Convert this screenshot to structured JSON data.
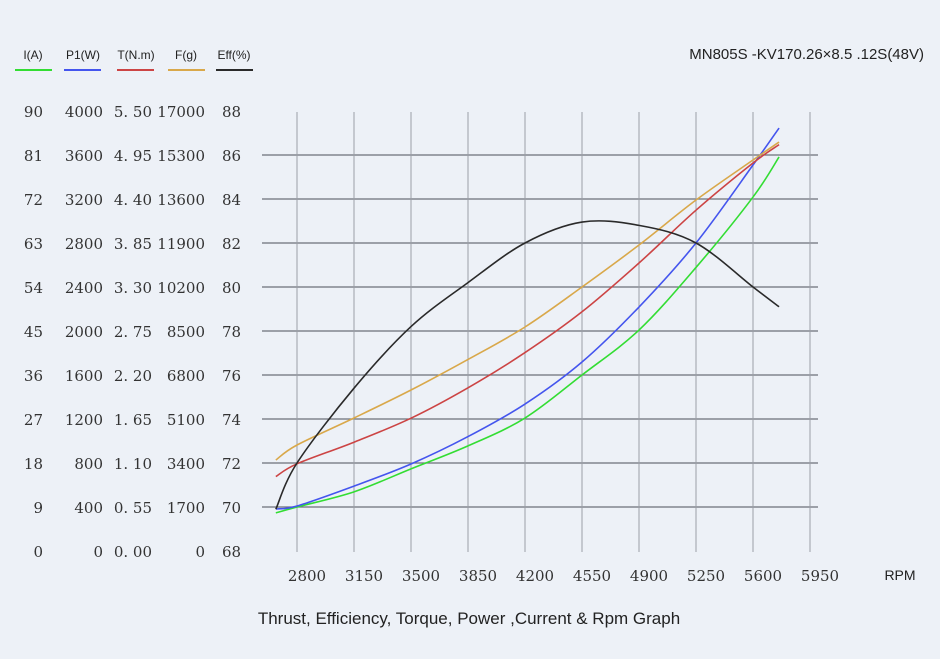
{
  "chart_data": {
    "type": "line",
    "title": "MN805S -KV170.26×8.5 .12S(48V)",
    "caption": "Thrust, Efficiency, Torque, Power ,Current & Rpm Graph",
    "xlabel": "RPM",
    "x_ticks": [
      "2800",
      "3150",
      "3500",
      "3850",
      "4200",
      "4550",
      "4900",
      "5250",
      "5600",
      "5950"
    ],
    "xlim": [
      2800,
      5950
    ],
    "grid": true,
    "legend_position": "top-left",
    "axes": [
      {
        "key": "I",
        "label": "I(A)",
        "ylim": [
          0,
          90
        ],
        "ticks": [
          "90",
          "81",
          "72",
          "63",
          "54",
          "45",
          "36",
          "27",
          "18",
          "9",
          "0"
        ]
      },
      {
        "key": "P1",
        "label": "P1(W)",
        "ylim": [
          0,
          4000
        ],
        "ticks": [
          "4000",
          "3600",
          "3200",
          "2800",
          "2400",
          "2000",
          "1600",
          "1200",
          "800",
          "400",
          "0"
        ]
      },
      {
        "key": "T",
        "label": "T(N.m)",
        "ylim": [
          0,
          5.5
        ],
        "ticks": [
          "5. 50",
          "4. 95",
          "4. 40",
          "3. 85",
          "3. 30",
          "2. 75",
          "2. 20",
          "1. 65",
          "1. 10",
          "0. 55",
          "0. 00"
        ]
      },
      {
        "key": "F",
        "label": "F(g)",
        "ylim": [
          0,
          17000
        ],
        "ticks": [
          "17000",
          "15300",
          "13600",
          "11900",
          "10200",
          "8500",
          "6800",
          "5100",
          "3400",
          "1700",
          "0"
        ]
      },
      {
        "key": "Eff",
        "label": "Eff(%)",
        "ylim": [
          68,
          88
        ],
        "ticks": [
          "88",
          "86",
          "84",
          "82",
          "80",
          "78",
          "76",
          "74",
          "72",
          "70",
          "68"
        ]
      }
    ],
    "x": [
      2670,
      2800,
      3150,
      3500,
      3850,
      4200,
      4550,
      4900,
      5250,
      5600,
      5760
    ],
    "series": [
      {
        "name": "I(A)",
        "axis": "I",
        "color": "#33dd33",
        "values": [
          7.8,
          9.0,
          12.1,
          16.8,
          21.5,
          27.2,
          36.0,
          45.2,
          58.0,
          72.4,
          80.6
        ]
      },
      {
        "name": "P1(W)",
        "axis": "P1",
        "color": "#4455ee",
        "values": [
          382,
          409,
          590,
          791,
          1040,
          1336,
          1718,
          2218,
          2800,
          3509,
          3845
        ]
      },
      {
        "name": "T(N.m)",
        "axis": "T",
        "color": "#cc4444",
        "values": [
          0.93,
          1.09,
          1.36,
          1.66,
          2.04,
          2.48,
          2.99,
          3.6,
          4.26,
          4.85,
          5.08
        ]
      },
      {
        "name": "F(g)",
        "axis": "F",
        "color": "#d9a84a",
        "values": [
          3516,
          4095,
          5139,
          6220,
          7400,
          8655,
          10200,
          11823,
          13560,
          15106,
          15800
        ]
      },
      {
        "name": "Eff(%)",
        "axis": "Eff",
        "color": "#2a2a2a",
        "values": [
          69.9,
          72.0,
          75.4,
          78.2,
          80.2,
          82.0,
          82.95,
          82.8,
          82.0,
          80.0,
          79.1
        ]
      }
    ]
  }
}
